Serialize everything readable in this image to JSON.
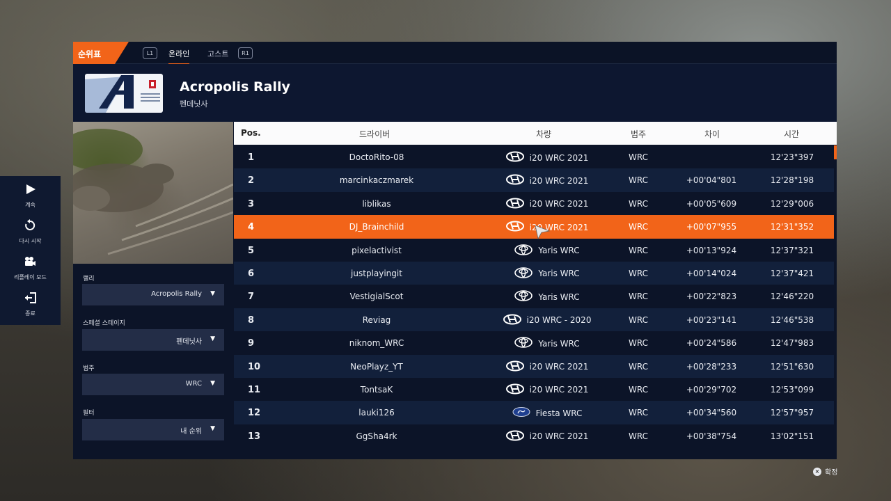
{
  "side_menu": {
    "items": [
      {
        "label": "계속",
        "icon": "play-icon"
      },
      {
        "label": "다시 시작",
        "icon": "restart-icon"
      },
      {
        "label": "리플레이 모드",
        "icon": "camera-icon"
      },
      {
        "label": "종료",
        "icon": "exit-icon"
      }
    ]
  },
  "tabbar": {
    "title": "순위표",
    "left_button": "L1",
    "right_button": "R1",
    "tabs": [
      {
        "label": "온라인",
        "active": true
      },
      {
        "label": "고스트",
        "active": false
      }
    ]
  },
  "header": {
    "rally_name": "Acropolis Rally",
    "stage": "펜데닛사"
  },
  "filters": {
    "rally_label": "랠리",
    "rally_value": "Acropolis Rally",
    "stage_label": "스페셜 스테이지",
    "stage_value": "펜데닛사",
    "class_label": "범주",
    "class_value": "WRC",
    "filter_label": "필터",
    "filter_value": "내 순위"
  },
  "table": {
    "headers": {
      "pos": "Pos.",
      "driver": "드라이버",
      "car": "차량",
      "class": "범주",
      "gap": "차이",
      "time": "시간"
    },
    "highlight_row": 3,
    "rows": [
      {
        "pos": "1",
        "driver": "DoctoRito-08",
        "brand": "hyundai-logo-icon",
        "car": "i20 WRC 2021",
        "class": "WRC",
        "gap": "",
        "time": "12'23\"397"
      },
      {
        "pos": "2",
        "driver": "marcinkaczmarek",
        "brand": "hyundai-logo-icon",
        "car": "i20 WRC 2021",
        "class": "WRC",
        "gap": "+00'04\"801",
        "time": "12'28\"198"
      },
      {
        "pos": "3",
        "driver": "liblikas",
        "brand": "hyundai-logo-icon",
        "car": "i20 WRC 2021",
        "class": "WRC",
        "gap": "+00'05\"609",
        "time": "12'29\"006"
      },
      {
        "pos": "4",
        "driver": "DJ_Brainchild",
        "brand": "hyundai-logo-icon",
        "car": "i20 WRC 2021",
        "class": "WRC",
        "gap": "+00'07\"955",
        "time": "12'31\"352"
      },
      {
        "pos": "5",
        "driver": "pixelactivist",
        "brand": "toyota-logo-icon",
        "car": "Yaris WRC",
        "class": "WRC",
        "gap": "+00'13\"924",
        "time": "12'37\"321"
      },
      {
        "pos": "6",
        "driver": "justplayingit",
        "brand": "toyota-logo-icon",
        "car": "Yaris WRC",
        "class": "WRC",
        "gap": "+00'14\"024",
        "time": "12'37\"421"
      },
      {
        "pos": "7",
        "driver": "VestigialScot",
        "brand": "toyota-logo-icon",
        "car": "Yaris WRC",
        "class": "WRC",
        "gap": "+00'22\"823",
        "time": "12'46\"220"
      },
      {
        "pos": "8",
        "driver": "Reviag",
        "brand": "hyundai-logo-icon",
        "car": "i20 WRC - 2020",
        "class": "WRC",
        "gap": "+00'23\"141",
        "time": "12'46\"538"
      },
      {
        "pos": "9",
        "driver": "niknom_WRC",
        "brand": "toyota-logo-icon",
        "car": "Yaris WRC",
        "class": "WRC",
        "gap": "+00'24\"586",
        "time": "12'47\"983"
      },
      {
        "pos": "10",
        "driver": "NeoPlayz_YT",
        "brand": "hyundai-logo-icon",
        "car": "i20 WRC 2021",
        "class": "WRC",
        "gap": "+00'28\"233",
        "time": "12'51\"630"
      },
      {
        "pos": "11",
        "driver": "TontsaK",
        "brand": "hyundai-logo-icon",
        "car": "i20 WRC 2021",
        "class": "WRC",
        "gap": "+00'29\"702",
        "time": "12'53\"099"
      },
      {
        "pos": "12",
        "driver": "lauki126",
        "brand": "ford-logo-icon",
        "car": "Fiesta WRC",
        "class": "WRC",
        "gap": "+00'34\"560",
        "time": "12'57\"957"
      },
      {
        "pos": "13",
        "driver": "GgSha4rk",
        "brand": "hyundai-logo-icon",
        "car": "i20 WRC 2021",
        "class": "WRC",
        "gap": "+00'38\"754",
        "time": "13'02\"151"
      }
    ]
  },
  "hint": {
    "button": "×",
    "label": "확정"
  },
  "colors": {
    "accent": "#f26419",
    "panel": "#0c1428",
    "row_alt": "#12203b"
  }
}
